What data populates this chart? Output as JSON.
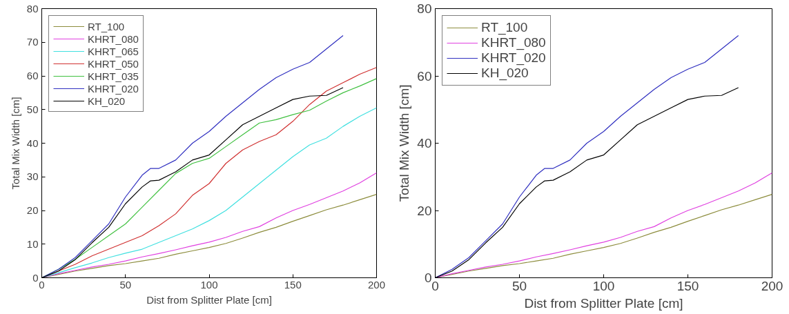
{
  "chart_data": [
    {
      "type": "line",
      "xlabel": "Dist from Splitter Plate [cm]",
      "ylabel": "Total Mix Width [cm]",
      "xlim": [
        0,
        200
      ],
      "ylim": [
        0,
        80
      ],
      "xticks": [
        0,
        50,
        100,
        150,
        200
      ],
      "yticks": [
        0,
        10,
        20,
        30,
        40,
        50,
        60,
        70,
        80
      ],
      "grid": false,
      "legend": "top left",
      "line_style": "solid",
      "series": [
        {
          "name": "RT_100",
          "color": "#8c8c3c",
          "x": [
            0,
            10,
            20,
            30,
            40,
            50,
            60,
            70,
            80,
            90,
            100,
            110,
            120,
            130,
            140,
            150,
            160,
            170,
            180,
            190,
            200
          ],
          "values": [
            0,
            1,
            2,
            2.8,
            3.6,
            4.2,
            5,
            5.8,
            7,
            8,
            9,
            10.2,
            11.8,
            13.5,
            15,
            16.8,
            18.5,
            20.2,
            21.6,
            23.2,
            24.8
          ]
        },
        {
          "name": "KHRT_080",
          "color": "#e040e0",
          "x": [
            0,
            10,
            20,
            30,
            40,
            50,
            60,
            70,
            80,
            90,
            100,
            110,
            120,
            130,
            140,
            150,
            160,
            170,
            180,
            190,
            200
          ],
          "values": [
            0,
            1.2,
            2.2,
            3.2,
            4,
            5,
            6.2,
            7.2,
            8.3,
            9.5,
            10.6,
            12,
            13.8,
            15.2,
            17.8,
            20,
            21.8,
            23.8,
            25.8,
            28.2,
            31.2
          ]
        },
        {
          "name": "KHRT_065",
          "color": "#40e0e0",
          "x": [
            0,
            10,
            20,
            30,
            40,
            50,
            60,
            70,
            80,
            90,
            100,
            110,
            120,
            130,
            140,
            150,
            160,
            170,
            180,
            190,
            200
          ],
          "values": [
            0,
            1.5,
            3,
            4.4,
            6,
            7.3,
            8.5,
            10.5,
            12.5,
            14.5,
            17,
            20,
            24,
            28,
            32,
            36,
            39.5,
            41.5,
            45,
            48,
            50.5
          ]
        },
        {
          "name": "KHRT_050",
          "color": "#d03030",
          "x": [
            0,
            10,
            20,
            30,
            40,
            50,
            60,
            70,
            80,
            90,
            100,
            110,
            120,
            130,
            140,
            150,
            160,
            170,
            180,
            190,
            200
          ],
          "values": [
            0,
            2,
            4,
            6.5,
            8.5,
            10.5,
            12.5,
            15.5,
            19,
            24.5,
            28,
            34,
            38,
            40.5,
            42.5,
            46.5,
            51.5,
            55.5,
            58,
            60.5,
            62.5
          ]
        },
        {
          "name": "KHRT_035",
          "color": "#40c040",
          "x": [
            0,
            10,
            20,
            30,
            40,
            50,
            60,
            70,
            80,
            90,
            100,
            110,
            120,
            130,
            140,
            150,
            160,
            170,
            180,
            190,
            200
          ],
          "values": [
            0,
            2.5,
            5.5,
            9,
            12.5,
            16,
            21,
            26,
            31,
            34,
            35.5,
            39,
            42.5,
            46,
            47,
            48.5,
            49.8,
            52.5,
            55,
            57,
            59.2
          ]
        },
        {
          "name": "KHRT_020",
          "color": "#3030c0",
          "x": [
            0,
            10,
            20,
            30,
            40,
            50,
            60,
            65,
            70,
            80,
            90,
            100,
            110,
            120,
            130,
            140,
            150,
            160,
            170,
            180
          ],
          "values": [
            0,
            2.5,
            6,
            11,
            16,
            24,
            30.5,
            32.5,
            32.5,
            35,
            40,
            43.5,
            48,
            52,
            56,
            59.5,
            62,
            64,
            68,
            72
          ]
        },
        {
          "name": "KH_020",
          "color": "#000000",
          "x": [
            0,
            10,
            20,
            30,
            40,
            50,
            60,
            65,
            70,
            80,
            90,
            100,
            110,
            120,
            130,
            140,
            150,
            160,
            170,
            180
          ],
          "values": [
            0,
            2,
            5.4,
            10.4,
            15,
            22,
            27,
            28.8,
            29,
            31.5,
            35,
            36.5,
            41,
            45.5,
            48,
            50.5,
            53,
            54,
            54.2,
            56.5
          ]
        }
      ]
    },
    {
      "type": "line",
      "xlabel": "Dist from Splitter Plate [cm]",
      "ylabel": "Total Mix Width [cm]",
      "xlim": [
        0,
        200
      ],
      "ylim": [
        0,
        80
      ],
      "xticks": [
        0,
        50,
        100,
        150,
        200
      ],
      "yticks": [
        0,
        20,
        40,
        60,
        80
      ],
      "grid": false,
      "legend": "top left",
      "line_style": "solid",
      "series": [
        {
          "name": "RT_100",
          "color": "#8c8c3c",
          "x": [
            0,
            10,
            20,
            30,
            40,
            50,
            60,
            70,
            80,
            90,
            100,
            110,
            120,
            130,
            140,
            150,
            160,
            170,
            180,
            190,
            200
          ],
          "values": [
            0,
            1,
            2,
            2.8,
            3.6,
            4.2,
            5,
            5.8,
            7,
            8,
            9,
            10.2,
            11.8,
            13.5,
            15,
            16.8,
            18.5,
            20.2,
            21.6,
            23.2,
            24.8
          ]
        },
        {
          "name": "KHRT_080",
          "color": "#e040e0",
          "x": [
            0,
            10,
            20,
            30,
            40,
            50,
            60,
            70,
            80,
            90,
            100,
            110,
            120,
            130,
            140,
            150,
            160,
            170,
            180,
            190,
            200
          ],
          "values": [
            0,
            1.2,
            2.2,
            3.2,
            4,
            5,
            6.2,
            7.2,
            8.3,
            9.5,
            10.6,
            12,
            13.8,
            15.2,
            17.8,
            20,
            21.8,
            23.8,
            25.8,
            28.2,
            31.2
          ]
        },
        {
          "name": "KHRT_020",
          "color": "#3030c0",
          "x": [
            0,
            10,
            20,
            30,
            40,
            50,
            60,
            65,
            70,
            80,
            90,
            100,
            110,
            120,
            130,
            140,
            150,
            160,
            170,
            180
          ],
          "values": [
            0,
            2.5,
            6,
            11,
            16,
            24,
            30.5,
            32.5,
            32.5,
            35,
            40,
            43.5,
            48,
            52,
            56,
            59.5,
            62,
            64,
            68,
            72
          ]
        },
        {
          "name": "KH_020",
          "color": "#000000",
          "x": [
            0,
            10,
            20,
            30,
            40,
            50,
            60,
            65,
            70,
            80,
            90,
            100,
            110,
            120,
            130,
            140,
            150,
            160,
            170,
            180
          ],
          "values": [
            0,
            2,
            5.4,
            10.4,
            15,
            22,
            27,
            28.8,
            29,
            31.5,
            35,
            36.5,
            41,
            45.5,
            48,
            50.5,
            53,
            54,
            54.2,
            56.5
          ]
        }
      ]
    }
  ]
}
